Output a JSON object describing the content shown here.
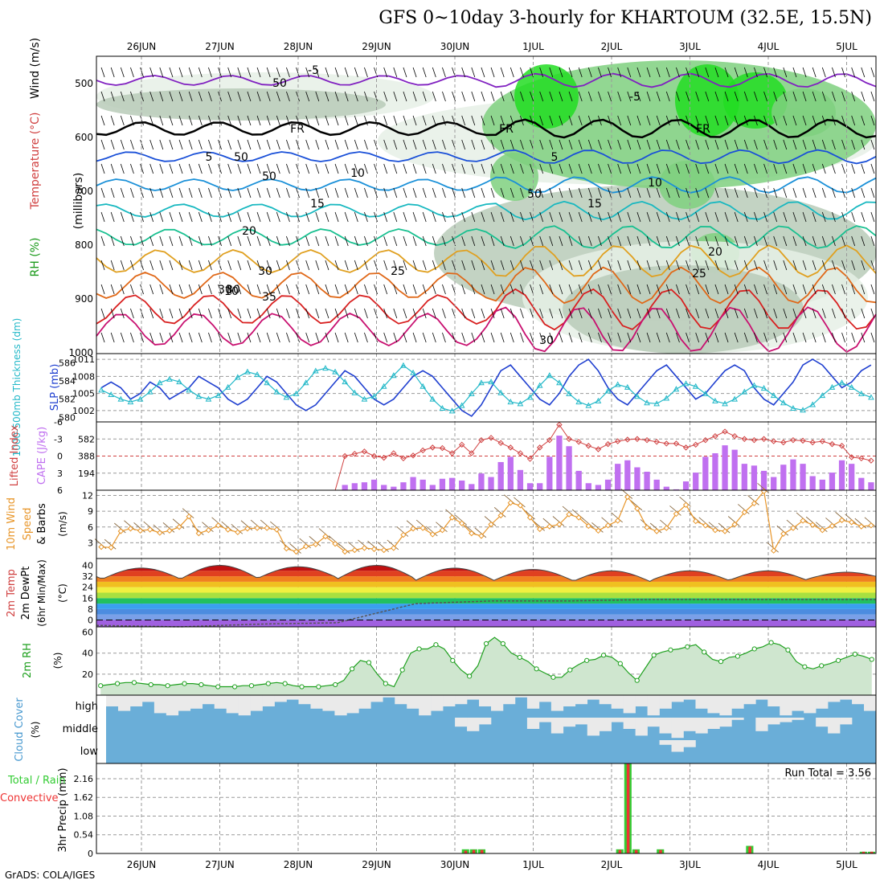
{
  "title": "GFS 0~10day 3-hourly for KHARTOUM (32.5E, 15.5N)",
  "credit": "GrADS: COLA/IGES",
  "date_labels": [
    "26JUN",
    "27JUN",
    "28JUN",
    "29JUN",
    "30JUN",
    "1JUL",
    "2JUL",
    "3JUL",
    "4JUL",
    "5JUL"
  ],
  "colors": {
    "grid": "#9a9a9a",
    "rh_light": "#e6f0e6",
    "rh_mid": "#b9cbb9",
    "rh_green": "#7fd07f",
    "rh_bright": "#22dd22",
    "slp": "#2040d0",
    "thick": "#22b8c8",
    "li": "#d04040",
    "cape": "#c070f0",
    "wind10": "#e8962a",
    "rh2m": "#1ea01e",
    "cloud": "#6aaed8",
    "cloud_clear": "#eaeaea",
    "precip_total": "#33cc33",
    "precip_conv": "#ee3333"
  },
  "panels": {
    "upper": {
      "ylabel_rh": "RH (%)",
      "ylabel_temp": "Temperature (°C)",
      "ylabel_wind": "Wind (m/s)",
      "ylabel_p": "(millibars)",
      "yticks": [
        "500",
        "600",
        "700",
        "800",
        "900",
        "1000"
      ],
      "contour_labels": [
        "-5",
        "-5",
        "5",
        "5",
        "10",
        "10",
        "15",
        "15",
        "20",
        "20",
        "25",
        "25",
        "30",
        "30",
        "35",
        "FR",
        "FR",
        "FR",
        "50",
        "50",
        "50",
        "30",
        "30",
        "50",
        "10"
      ]
    },
    "slp": {
      "ylabel_left": "1000-500mb Thickness (dm)",
      "ylabel_right": "SLP (mb)",
      "yticks_left": [
        "586",
        "584",
        "582",
        "580"
      ],
      "yticks_right": [
        "1011",
        "1008",
        "1005",
        "1002"
      ]
    },
    "cape": {
      "ylabel_left": "Lifted Index",
      "ylabel_right": "CAPE (J/kg)",
      "yticks_left": [
        "-6",
        "-3",
        "0",
        "3",
        "6"
      ],
      "yticks_right": [
        "582",
        "388",
        "194"
      ]
    },
    "wind10": {
      "ylabel1": "10m Wind",
      "ylabel2": "Speed",
      "ylabel3": "& Barbs",
      "unit": "(m/s)",
      "yticks": [
        "12",
        "9",
        "6",
        "3"
      ]
    },
    "temp2m": {
      "ylabel1": "2m Temp",
      "ylabel2": "2m DewPt",
      "ylabel3": "(6hr Min/Max)",
      "unit": "(°C)",
      "yticks": [
        "40",
        "32",
        "24",
        "16",
        "8",
        "0"
      ]
    },
    "rh2m": {
      "ylabel": "2m RH",
      "unit": "(%)",
      "yticks": [
        "60",
        "40",
        "20"
      ]
    },
    "cloud": {
      "ylabel": "Cloud Cover",
      "unit": "(%)",
      "levels": [
        "high",
        "middle",
        "low"
      ]
    },
    "precip": {
      "ylabel_left1": "Total / Rain",
      "ylabel_left2": "Convective",
      "ylabel": "3hr Precip (mm)",
      "yticks": [
        "2.16",
        "1.62",
        "1.08",
        "0.54",
        "0"
      ],
      "run_total": "Run Total = 3.56"
    }
  },
  "chart_data": [
    {
      "type": "line",
      "title": "SLP (mb)",
      "x_days": 10,
      "series": [
        {
          "name": "SLP (mb)",
          "values": [
            1006,
            1007,
            1006,
            1004,
            1005,
            1007,
            1006,
            1004,
            1005,
            1006,
            1008,
            1007,
            1006,
            1004,
            1003,
            1004,
            1006,
            1008,
            1007,
            1005,
            1003,
            1002,
            1003,
            1005,
            1007,
            1009,
            1008,
            1006,
            1004,
            1003,
            1004,
            1006,
            1008,
            1009,
            1008,
            1006,
            1004,
            1002,
            1001,
            1003,
            1006,
            1009,
            1010,
            1008,
            1006,
            1004,
            1003,
            1005,
            1008,
            1010,
            1011,
            1009,
            1006,
            1004,
            1003,
            1005,
            1007,
            1009,
            1010,
            1008,
            1006,
            1004,
            1005,
            1007,
            1009,
            1010,
            1009,
            1006,
            1004,
            1003,
            1005,
            1007,
            1010,
            1011,
            1010,
            1008,
            1006,
            1007,
            1009,
            1010
          ]
        },
        {
          "name": "1000-500mb Thickness (dm)",
          "values": [
            583,
            582.5,
            582,
            581.7,
            582,
            582.8,
            583.8,
            584.2,
            583.9,
            583,
            582.3,
            582,
            582.4,
            583.3,
            584.4,
            585,
            584.7,
            583.8,
            582.8,
            582.2,
            582.6,
            583.8,
            585.1,
            585.4,
            585,
            583.9,
            582.7,
            582,
            582.3,
            583.4,
            584.6,
            585.7,
            584.9,
            583.4,
            582,
            581,
            580.7,
            581.3,
            582.6,
            583.8,
            583.9,
            582.7,
            581.7,
            581.5,
            582.2,
            583.5,
            584.6,
            583.8,
            582.6,
            581.7,
            581.3,
            581.8,
            582.9,
            583.6,
            583.3,
            582.3,
            581.6,
            581.5,
            582.1,
            583.1,
            583.7,
            583.4,
            582.6,
            581.8,
            581.5,
            582,
            582.8,
            583.5,
            583.2,
            582.4,
            581.6,
            581,
            580.8,
            581.4,
            582.4,
            583.3,
            583.8,
            583.3,
            582.6,
            582.2
          ]
        }
      ],
      "ylim_left": [
        579.5,
        587
      ],
      "ylim_right": [
        1000,
        1012
      ]
    },
    {
      "type": "bar",
      "title": "CAPE (J/kg) / Lifted Index",
      "cape_values": [
        0,
        0,
        0,
        0,
        0,
        0,
        0,
        0,
        0,
        0,
        0,
        0,
        0,
        0,
        0,
        0,
        0,
        0,
        0,
        0,
        0,
        0,
        0,
        0,
        0,
        60,
        80,
        90,
        120,
        60,
        40,
        90,
        150,
        120,
        60,
        130,
        140,
        110,
        70,
        190,
        150,
        320,
        380,
        230,
        80,
        80,
        380,
        620,
        500,
        220,
        80,
        60,
        120,
        300,
        340,
        260,
        210,
        120,
        40,
        10,
        100,
        200,
        380,
        420,
        510,
        460,
        300,
        280,
        220,
        150,
        290,
        350,
        300,
        160,
        120,
        200,
        340,
        300,
        140,
        90
      ],
      "li_values": [
        6,
        6,
        6,
        6,
        6,
        6,
        6,
        6,
        6,
        6,
        6,
        6,
        6,
        6,
        6,
        6,
        6,
        6,
        6,
        6,
        6,
        6,
        6,
        6,
        6,
        0,
        -0.4,
        -0.8,
        0,
        0.3,
        -0.5,
        0.4,
        -0.1,
        -1,
        -1.5,
        -1.4,
        -0.5,
        -2,
        -0.5,
        -2.8,
        -3.2,
        -2.3,
        -1.5,
        -0.5,
        0.5,
        -1.5,
        -2.8,
        -5.5,
        -3,
        -2.5,
        -1.8,
        -1.2,
        -2.1,
        -2.6,
        -2.9,
        -3,
        -2.8,
        -2.5,
        -2.2,
        -2.2,
        -1.5,
        -2,
        -2.8,
        -3.5,
        -4.3,
        -3.5,
        -3,
        -2.8,
        -3,
        -2.6,
        -2.4,
        -2.8,
        -2.7,
        -2.4,
        -2.6,
        -2.1,
        -1.8,
        0.2,
        0.4,
        0.8
      ],
      "ylim_cape": [
        0,
        776
      ],
      "ylim_li": [
        6,
        -6
      ]
    },
    {
      "type": "line",
      "title": "10m Wind Speed",
      "series": [
        {
          "name": "10m Wind Speed (m/s)",
          "values": [
            2.2,
            2.1,
            5.2,
            5.7,
            5.3,
            5.5,
            4.9,
            5.3,
            6,
            8,
            4.8,
            5.4,
            6.3,
            5.5,
            5,
            5.7,
            5.8,
            5.8,
            5.5,
            1.9,
            1.3,
            2.3,
            2.7,
            4.2,
            2.8,
            1.3,
            1.6,
            2,
            1.8,
            1.6,
            2,
            4.5,
            5.7,
            5.8,
            4.6,
            5.4,
            7.8,
            6.7,
            4.8,
            4.3,
            6.5,
            8.2,
            10.6,
            10.1,
            7.8,
            5.6,
            6.1,
            6.5,
            8.4,
            7.8,
            6.2,
            5.3,
            6.3,
            7.2,
            11.7,
            9.5,
            5.9,
            5.2,
            5.8,
            8.5,
            10.2,
            7.1,
            6.3,
            5.4,
            5.2,
            6.5,
            8.8,
            10.5,
            12.8,
            1.5,
            4.7,
            5.8,
            7.2,
            6.4,
            5.4,
            6.2,
            7.3,
            6.9,
            6.1,
            6.3
          ]
        }
      ],
      "ylim": [
        0,
        13
      ]
    },
    {
      "type": "area",
      "title": "2m Temp / DewPt",
      "max_temp_peaks": [
        38,
        40,
        39,
        40,
        38,
        37,
        36,
        36,
        36,
        35
      ],
      "min_temp_troughs": [
        30,
        30,
        31,
        30,
        29,
        29,
        28,
        29,
        29,
        30
      ],
      "dewpoint": [
        -4,
        -5,
        -3,
        -2,
        12,
        14,
        14,
        15,
        15,
        15
      ],
      "ylim": [
        -5,
        45
      ]
    },
    {
      "type": "area",
      "title": "2m RH",
      "series": [
        {
          "name": "2m RH (%)",
          "values": [
            9,
            10,
            11,
            12,
            12,
            11,
            10,
            10,
            9,
            10,
            11,
            11,
            10,
            9,
            8,
            8,
            8,
            9,
            9,
            10,
            11,
            12,
            11,
            9,
            8,
            8,
            8,
            9,
            10,
            14,
            25,
            33,
            31,
            20,
            11,
            8,
            24,
            40,
            44,
            44,
            48,
            44,
            33,
            24,
            18,
            28,
            49,
            55,
            49,
            40,
            36,
            32,
            25,
            21,
            17,
            17,
            24,
            29,
            33,
            34,
            38,
            36,
            30,
            21,
            14,
            26,
            38,
            41,
            43,
            44,
            46,
            48,
            41,
            34,
            32,
            36,
            37,
            40,
            44,
            46,
            50,
            48,
            43,
            32,
            27,
            25,
            28,
            30,
            33,
            36,
            39,
            37,
            34
          ]
        }
      ],
      "ylim": [
        0,
        65
      ]
    },
    {
      "type": "heatmap",
      "title": "Cloud Cover",
      "levels": [
        "high",
        "middle",
        "low"
      ],
      "high_clear_fraction": [
        0.5,
        0.7,
        0.5,
        0.3,
        0.8,
        0.9,
        0.7,
        0.6,
        0.4,
        0.6,
        0.8,
        0.9,
        0.7,
        0.5,
        0.3,
        0.2,
        0.4,
        0.6,
        0.7,
        0.9,
        0.8,
        0.6,
        0.3,
        0.1,
        0.4,
        0.6,
        0.9,
        0.7,
        0.5,
        0.4,
        0.2,
        0.5,
        0.7,
        0.4,
        0.1,
        0.6,
        0.3,
        0.7,
        0.5,
        0.4,
        0.2,
        0.4,
        0.6,
        0.8,
        0.5,
        0.9,
        0.6,
        0.3,
        0.2,
        0.6,
        0.8,
        0.9,
        0.6,
        0.4,
        0.2,
        0.5,
        0.9,
        0.7,
        0.8,
        0.6,
        0.3,
        0.2,
        0.4,
        0.7
      ],
      "middle_clear_fraction": [
        0,
        0,
        0,
        0,
        0,
        0,
        0,
        0,
        0,
        0,
        0,
        0,
        0,
        0,
        0,
        0,
        0,
        0,
        0,
        0,
        0,
        0,
        0,
        0,
        0,
        0,
        0,
        0,
        0,
        0.4,
        0.6,
        0.3,
        0,
        0,
        0,
        0.5,
        0.2,
        0.7,
        0.4,
        0.3,
        0.8,
        0.6,
        0.2,
        0.5,
        0.8,
        0.4,
        0.7,
        0.9,
        0.6,
        0.7,
        0.5,
        0.4,
        0.1,
        0,
        0.6,
        0.3,
        0.2,
        0.1,
        0,
        0.4,
        0.7,
        0.3,
        0,
        0
      ],
      "low_clear_fraction": [
        0,
        0,
        0,
        0,
        0,
        0,
        0,
        0,
        0,
        0,
        0,
        0,
        0,
        0,
        0,
        0,
        0,
        0,
        0,
        0,
        0,
        0,
        0,
        0,
        0,
        0,
        0,
        0,
        0,
        0,
        0,
        0,
        0,
        0,
        0,
        0,
        0,
        0,
        0,
        0,
        0,
        0,
        0,
        0,
        0,
        0,
        0.2,
        0.5,
        0.3,
        0,
        0,
        0,
        0,
        0,
        0,
        0,
        0,
        0,
        0,
        0,
        0,
        0,
        0,
        0
      ]
    },
    {
      "type": "bar",
      "title": "3hr Precip (mm)",
      "total": [
        0,
        0,
        0,
        0,
        0,
        0,
        0,
        0,
        0,
        0,
        0,
        0,
        0,
        0,
        0,
        0,
        0,
        0,
        0,
        0,
        0,
        0,
        0,
        0,
        0,
        0,
        0,
        0,
        0,
        0,
        0,
        0,
        0,
        0,
        0,
        0,
        0,
        0,
        0,
        0,
        0,
        0,
        0,
        0,
        0,
        0.12,
        0.12,
        0.12,
        0,
        0,
        0,
        0,
        0,
        0,
        0,
        0,
        0,
        0,
        0,
        0,
        0,
        0,
        0,
        0,
        0.12,
        2.6,
        0.12,
        0,
        0,
        0.12,
        0,
        0,
        0,
        0,
        0,
        0,
        0,
        0,
        0,
        0,
        0.22,
        0,
        0,
        0,
        0,
        0,
        0,
        0,
        0,
        0,
        0,
        0,
        0,
        0,
        0.05,
        0.05
      ],
      "convective": [
        0,
        0,
        0,
        0,
        0,
        0,
        0,
        0,
        0,
        0,
        0,
        0,
        0,
        0,
        0,
        0,
        0,
        0,
        0,
        0,
        0,
        0,
        0,
        0,
        0,
        0,
        0,
        0,
        0,
        0,
        0,
        0,
        0,
        0,
        0,
        0,
        0,
        0,
        0,
        0,
        0,
        0,
        0,
        0,
        0,
        0.08,
        0.1,
        0.1,
        0,
        0,
        0,
        0,
        0,
        0,
        0,
        0,
        0,
        0,
        0,
        0,
        0,
        0,
        0,
        0,
        0.1,
        2.6,
        0.1,
        0,
        0,
        0.1,
        0,
        0,
        0,
        0,
        0,
        0,
        0,
        0,
        0,
        0,
        0.2,
        0,
        0,
        0,
        0,
        0,
        0,
        0,
        0,
        0,
        0,
        0,
        0,
        0,
        0.05,
        0.05
      ],
      "ylim": [
        0,
        2.6
      ]
    }
  ]
}
